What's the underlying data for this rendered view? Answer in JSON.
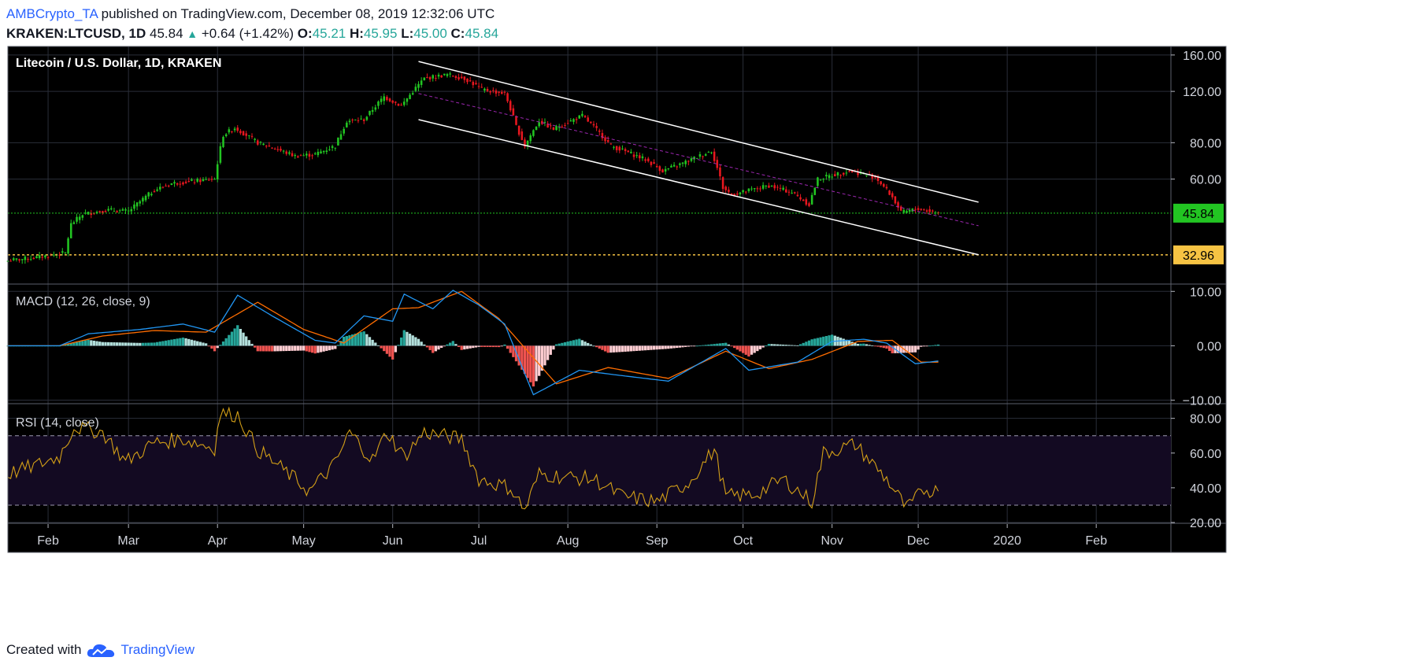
{
  "header": {
    "author": "AMBCrypto_TA",
    "published": "published on TradingView.com, December 08, 2019 12:32:06 UTC",
    "symbol": "KRAKEN:LTCUSD, 1D",
    "last": "45.84",
    "change": "+0.64 (+1.42%)",
    "o_label": "O:",
    "o_value": "45.21",
    "h_label": "H:",
    "h_value": "45.95",
    "l_label": "L:",
    "l_value": "45.00",
    "c_label": "C:",
    "c_value": "45.84"
  },
  "footer": {
    "created": "Created with",
    "brand": "TradingView"
  },
  "colors": {
    "up": "#22c522",
    "down": "#e8171f",
    "macd": "#2196f3",
    "signal": "#ff6d00",
    "rsi": "#d4a017",
    "current": "#22c522",
    "support": "#f6c343"
  },
  "chart_data": [
    {
      "type": "candlestick",
      "title": "Litecoin / U.S. Dollar, 1D, KRAKEN",
      "y_scale": "log",
      "ylim": [
        27,
        167
      ],
      "y_ticks": [
        "160.00",
        "120.00",
        "80.00",
        "60.00"
      ],
      "x_ticks": [
        "Feb",
        "Mar",
        "Apr",
        "May",
        "Jun",
        "Jul",
        "Aug",
        "Sep",
        "Oct",
        "Nov",
        "Dec",
        "2020",
        "Feb"
      ],
      "x_tick_dates": [
        "2019-02-01",
        "2019-03-01",
        "2019-04-01",
        "2019-05-01",
        "2019-06-01",
        "2019-07-01",
        "2019-08-01",
        "2019-09-01",
        "2019-10-01",
        "2019-11-01",
        "2019-12-01",
        "2020-01-01",
        "2020-02-01"
      ],
      "xlim": [
        "2019-01-18",
        "2020-02-27"
      ],
      "close_keypoints": [
        [
          "2019-01-18",
          31.5
        ],
        [
          "2019-01-28",
          32.3
        ],
        [
          "2019-02-07",
          33.5
        ],
        [
          "2019-02-09",
          42.0
        ],
        [
          "2019-02-13",
          45.5
        ],
        [
          "2019-02-22",
          47.0
        ],
        [
          "2019-03-01",
          46.5
        ],
        [
          "2019-03-10",
          55.0
        ],
        [
          "2019-03-16",
          58.0
        ],
        [
          "2019-03-31",
          60.0
        ],
        [
          "2019-04-03",
          85.0
        ],
        [
          "2019-04-07",
          90.0
        ],
        [
          "2019-04-15",
          80.0
        ],
        [
          "2019-04-28",
          72.0
        ],
        [
          "2019-05-05",
          73.0
        ],
        [
          "2019-05-12",
          78.0
        ],
        [
          "2019-05-16",
          95.0
        ],
        [
          "2019-05-22",
          96.0
        ],
        [
          "2019-05-29",
          115.0
        ],
        [
          "2019-06-04",
          107.0
        ],
        [
          "2019-06-12",
          133.0
        ],
        [
          "2019-06-20",
          137.0
        ],
        [
          "2019-06-26",
          133.0
        ],
        [
          "2019-07-02",
          122.0
        ],
        [
          "2019-07-10",
          118.0
        ],
        [
          "2019-07-14",
          91.0
        ],
        [
          "2019-07-17",
          78.0
        ],
        [
          "2019-07-22",
          95.0
        ],
        [
          "2019-07-27",
          89.0
        ],
        [
          "2019-08-06",
          99.0
        ],
        [
          "2019-08-16",
          78.0
        ],
        [
          "2019-08-28",
          70.0
        ],
        [
          "2019-09-03",
          64.0
        ],
        [
          "2019-09-10",
          68.0
        ],
        [
          "2019-09-20",
          75.0
        ],
        [
          "2019-09-24",
          56.0
        ],
        [
          "2019-09-27",
          53.0
        ],
        [
          "2019-10-10",
          57.0
        ],
        [
          "2019-10-18",
          54.0
        ],
        [
          "2019-10-24",
          49.0
        ],
        [
          "2019-10-27",
          60.0
        ],
        [
          "2019-11-07",
          64.0
        ],
        [
          "2019-11-16",
          61.0
        ],
        [
          "2019-11-22",
          52.0
        ],
        [
          "2019-11-25",
          46.0
        ],
        [
          "2019-12-01",
          47.5
        ],
        [
          "2019-12-08",
          45.84
        ]
      ],
      "current_price": 45.84,
      "current_price_label": "45.84",
      "support_level": 32.96,
      "support_label": "32.96",
      "channel_upper": [
        [
          "2019-06-10",
          152.0
        ],
        [
          "2019-12-22",
          50.0
        ]
      ],
      "channel_lower": [
        [
          "2019-06-10",
          96.0
        ],
        [
          "2019-12-22",
          33.0
        ]
      ],
      "channel_mid": [
        [
          "2019-06-10",
          118.0
        ],
        [
          "2019-12-22",
          41.5
        ]
      ]
    },
    {
      "type": "line",
      "title": "MACD (12, 26, close, 9)",
      "ylim": [
        -10.5,
        11.2
      ],
      "y_ticks": [
        "10.00",
        "0.00",
        "−10.00"
      ],
      "series_keypoints": {
        "macd": [
          [
            "2019-01-18",
            0
          ],
          [
            "2019-02-05",
            0
          ],
          [
            "2019-02-15",
            2.2
          ],
          [
            "2019-03-05",
            3.0
          ],
          [
            "2019-03-20",
            4.0
          ],
          [
            "2019-03-31",
            2.5
          ],
          [
            "2019-04-08",
            9.3
          ],
          [
            "2019-04-20",
            5.5
          ],
          [
            "2019-05-05",
            1.0
          ],
          [
            "2019-05-12",
            0.5
          ],
          [
            "2019-05-22",
            5.5
          ],
          [
            "2019-06-01",
            4.5
          ],
          [
            "2019-06-05",
            9.5
          ],
          [
            "2019-06-15",
            6.8
          ],
          [
            "2019-06-22",
            10.2
          ],
          [
            "2019-07-01",
            7.5
          ],
          [
            "2019-07-10",
            4.0
          ],
          [
            "2019-07-20",
            -9.0
          ],
          [
            "2019-08-05",
            -4.5
          ],
          [
            "2019-08-20",
            -5.5
          ],
          [
            "2019-09-05",
            -6.5
          ],
          [
            "2019-09-20",
            -2.0
          ],
          [
            "2019-09-25",
            -0.5
          ],
          [
            "2019-10-03",
            -4.5
          ],
          [
            "2019-10-20",
            -3.0
          ],
          [
            "2019-11-01",
            0.8
          ],
          [
            "2019-11-12",
            1.2
          ],
          [
            "2019-11-20",
            0.5
          ],
          [
            "2019-11-30",
            -3.3
          ],
          [
            "2019-12-08",
            -2.8
          ]
        ],
        "signal": [
          [
            "2019-01-18",
            0
          ],
          [
            "2019-02-05",
            0
          ],
          [
            "2019-02-20",
            1.8
          ],
          [
            "2019-03-10",
            2.8
          ],
          [
            "2019-03-28",
            2.5
          ],
          [
            "2019-04-15",
            8.0
          ],
          [
            "2019-05-01",
            3.0
          ],
          [
            "2019-05-15",
            0.5
          ],
          [
            "2019-06-01",
            6.8
          ],
          [
            "2019-06-10",
            7.0
          ],
          [
            "2019-06-25",
            10.0
          ],
          [
            "2019-07-08",
            5.0
          ],
          [
            "2019-07-28",
            -7.0
          ],
          [
            "2019-08-15",
            -4.0
          ],
          [
            "2019-09-05",
            -6.0
          ],
          [
            "2019-09-25",
            -1.0
          ],
          [
            "2019-10-10",
            -4.2
          ],
          [
            "2019-10-25",
            -2.5
          ],
          [
            "2019-11-10",
            0.8
          ],
          [
            "2019-11-22",
            1.0
          ],
          [
            "2019-12-02",
            -3.0
          ],
          [
            "2019-12-08",
            -3.0
          ]
        ]
      }
    },
    {
      "type": "line",
      "title": "RSI (14, close)",
      "ylim": [
        20,
        88
      ],
      "y_ticks": [
        "80.00",
        "60.00",
        "40.00",
        "20.00"
      ],
      "upper_band": 70,
      "lower_band": 30,
      "series_keypoints": [
        [
          "2019-01-18",
          48
        ],
        [
          "2019-01-28",
          53
        ],
        [
          "2019-02-05",
          58
        ],
        [
          "2019-02-10",
          75
        ],
        [
          "2019-02-20",
          72
        ],
        [
          "2019-02-28",
          55
        ],
        [
          "2019-03-10",
          66
        ],
        [
          "2019-03-20",
          68
        ],
        [
          "2019-03-31",
          63
        ],
        [
          "2019-04-02",
          83
        ],
        [
          "2019-04-08",
          82
        ],
        [
          "2019-04-15",
          62
        ],
        [
          "2019-04-28",
          45
        ],
        [
          "2019-05-03",
          38
        ],
        [
          "2019-05-12",
          54
        ],
        [
          "2019-05-17",
          72
        ],
        [
          "2019-05-25",
          56
        ],
        [
          "2019-05-30",
          72
        ],
        [
          "2019-06-05",
          58
        ],
        [
          "2019-06-12",
          72
        ],
        [
          "2019-06-25",
          68
        ],
        [
          "2019-07-01",
          45
        ],
        [
          "2019-07-12",
          40
        ],
        [
          "2019-07-17",
          27
        ],
        [
          "2019-07-22",
          48
        ],
        [
          "2019-08-01",
          46
        ],
        [
          "2019-08-10",
          45
        ],
        [
          "2019-08-20",
          35
        ],
        [
          "2019-09-01",
          32
        ],
        [
          "2019-09-12",
          43
        ],
        [
          "2019-09-21",
          62
        ],
        [
          "2019-09-25",
          35
        ],
        [
          "2019-10-05",
          36
        ],
        [
          "2019-10-15",
          45
        ],
        [
          "2019-10-25",
          32
        ],
        [
          "2019-10-29",
          60
        ],
        [
          "2019-11-09",
          65
        ],
        [
          "2019-11-20",
          45
        ],
        [
          "2019-11-27",
          28
        ],
        [
          "2019-12-03",
          39
        ],
        [
          "2019-12-08",
          38
        ]
      ]
    }
  ]
}
